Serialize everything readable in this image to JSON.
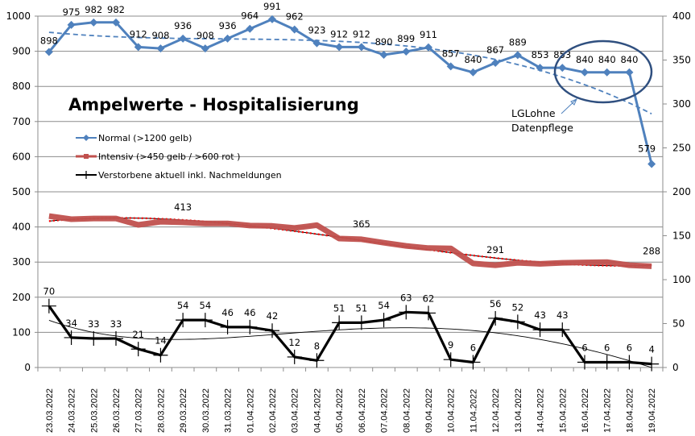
{
  "chart_data": {
    "type": "line",
    "title": "Ampelwerte - Hospitalisierung",
    "xlabel": "",
    "ylabel": "",
    "y2label": "",
    "ylim": [
      0,
      1000
    ],
    "y2lim": [
      0,
      400
    ],
    "yticks": [
      0,
      100,
      200,
      300,
      400,
      500,
      600,
      700,
      800,
      900,
      1000
    ],
    "y2ticks": [
      0,
      50,
      100,
      150,
      200,
      250,
      300,
      350,
      400
    ],
    "grid": true,
    "legend_position": "left-middle",
    "categories": [
      "23.03.2022",
      "24.03.2022",
      "25.03.2022",
      "26.03.2022",
      "27.03.2022",
      "28.03.2022",
      "29.03.2022",
      "30.03.2022",
      "31.03.2022",
      "01.04.2022",
      "02.04.2022",
      "03.04.2022",
      "04.04.2022",
      "05.04.2022",
      "06.04.2022",
      "07.04.2022",
      "08.04.2022",
      "09.04.2022",
      "10.04.2022",
      "11.04.2022",
      "12.04.2022",
      "13.04.2022",
      "14.04.2022",
      "15.04.2022",
      "16.04.2022",
      "17.04.2022",
      "18.04.2022",
      "19.04.2022"
    ],
    "series": [
      {
        "name": "Normal (>1200 gelb)",
        "axis": "left",
        "color": "#4f81bd",
        "marker": "diamond",
        "values": [
          898,
          975,
          982,
          982,
          912,
          908,
          936,
          908,
          936,
          964,
          991,
          962,
          923,
          912,
          912,
          890,
          899,
          911,
          857,
          840,
          867,
          889,
          853,
          853,
          840,
          840,
          840,
          579
        ],
        "labels": [
          "898",
          "975",
          "982",
          "982",
          "912",
          "908",
          "936",
          "908",
          "936",
          "964",
          "991",
          "962",
          "923",
          "912",
          "912",
          "890",
          "899",
          "911",
          "857",
          "840",
          "867",
          "889",
          "853",
          "853",
          "840",
          "840",
          "840",
          "579"
        ],
        "trendline": "polynomial-dashed"
      },
      {
        "name": "Intensiv (>450 gelb / >600 rot )",
        "axis": "left",
        "color": "#c0504d",
        "marker": "square",
        "values": [
          431,
          422,
          424,
          424,
          406,
          415,
          413,
          410,
          410,
          404,
          403,
          397,
          405,
          367,
          365,
          355,
          346,
          340,
          339,
          296,
          291,
          298,
          295,
          298,
          299,
          300,
          291,
          288
        ],
        "labels": [
          "",
          "",
          "",
          "",
          "",
          "",
          "413",
          "",
          "",
          "",
          "",
          "",
          "",
          "",
          "365",
          "",
          "",
          "",
          "",
          "",
          "291",
          "",
          "",
          "",
          "",
          "",
          "",
          "288"
        ],
        "trendline": "polynomial-dotted-red"
      },
      {
        "name": "Verstorbene aktuell inkl. Nachmeldungen",
        "axis": "right",
        "color": "#000000",
        "marker": "plus",
        "values": [
          70,
          34,
          33,
          33,
          21,
          14,
          54,
          54,
          46,
          46,
          42,
          12,
          8,
          51,
          51,
          54,
          63,
          62,
          9,
          6,
          56,
          52,
          43,
          43,
          6,
          6,
          6,
          4
        ],
        "labels": [
          "70",
          "34",
          "33",
          "33",
          "21",
          "14",
          "54",
          "54",
          "46",
          "46",
          "42",
          "12",
          "8",
          "51",
          "51",
          "54",
          "63",
          "62",
          "9",
          "6",
          "56",
          "52",
          "43",
          "43",
          "6",
          "6",
          "6",
          "4"
        ],
        "trendline": "polynomial-thin"
      }
    ],
    "annotations": [
      {
        "text_line1": "LGLohne",
        "text_line2": "Datenpflege",
        "shape": "ellipse-with-arrow",
        "target": "16.04.2022-18.04.2022 Normal"
      }
    ]
  }
}
